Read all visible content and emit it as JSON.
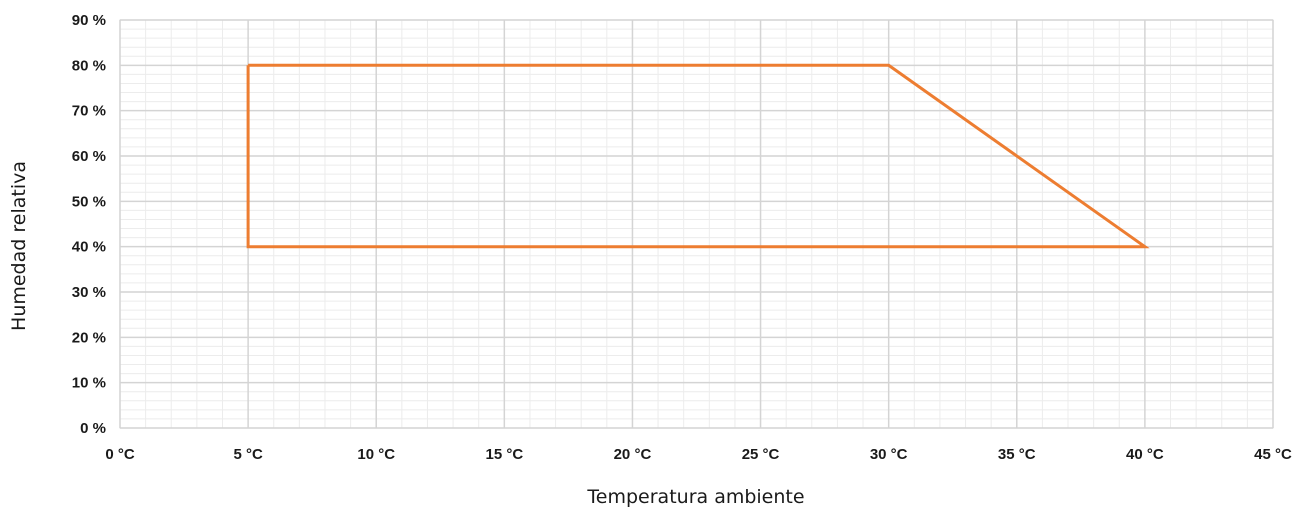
{
  "chart_data": {
    "type": "line",
    "title": "",
    "xlabel": "Temperatura ambiente",
    "ylabel": "Humedad relativa",
    "xlim": [
      0,
      45
    ],
    "ylim": [
      0,
      90
    ],
    "x_ticks": [
      0,
      5,
      10,
      15,
      20,
      25,
      30,
      35,
      40,
      45
    ],
    "x_tick_labels": [
      "0 °C",
      "5 °C",
      "10 °C",
      "15 °C",
      "20 °C",
      "25 °C",
      "30 °C",
      "35 °C",
      "40 °C",
      "45 °C"
    ],
    "y_ticks": [
      0,
      10,
      20,
      30,
      40,
      50,
      60,
      70,
      80,
      90
    ],
    "y_tick_labels": [
      "0 %",
      "10 %",
      "20 %",
      "30 %",
      "40 %",
      "50 %",
      "60 %",
      "70 %",
      "80 %",
      "90 %"
    ],
    "grid": true,
    "minor_grid": true,
    "legend": "none",
    "series": [
      {
        "color": "#ed7d31",
        "x": [
          5,
          30,
          40,
          5,
          5
        ],
        "y": [
          80,
          80,
          40,
          40,
          80
        ]
      }
    ]
  }
}
